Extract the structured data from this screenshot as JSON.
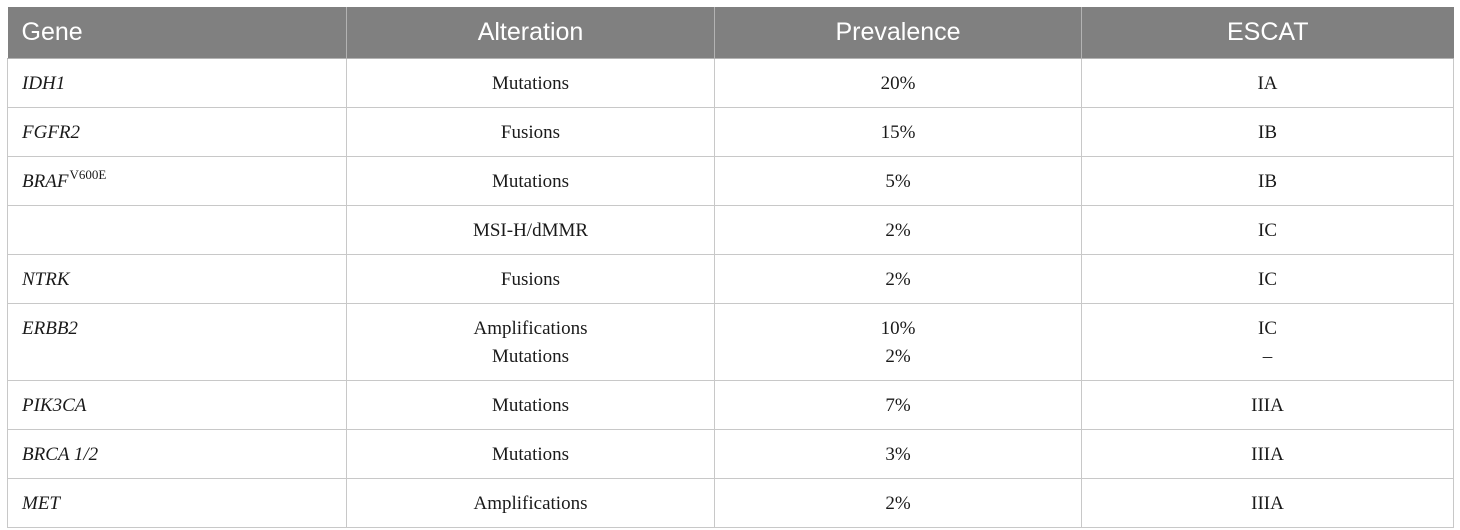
{
  "table": {
    "headers": [
      "Gene",
      "Alteration",
      "Prevalence",
      "ESCAT"
    ],
    "rows": [
      {
        "gene": "IDH1",
        "gene_sup": "",
        "alteration": [
          "Mutations"
        ],
        "prevalence": [
          "20%"
        ],
        "escat": [
          "IA"
        ]
      },
      {
        "gene": "FGFR2",
        "gene_sup": "",
        "alteration": [
          "Fusions"
        ],
        "prevalence": [
          "15%"
        ],
        "escat": [
          "IB"
        ]
      },
      {
        "gene": "BRAF",
        "gene_sup": "V600E",
        "alteration": [
          "Mutations"
        ],
        "prevalence": [
          "5%"
        ],
        "escat": [
          "IB"
        ]
      },
      {
        "gene": "",
        "gene_sup": "",
        "alteration": [
          "MSI-H/dMMR"
        ],
        "prevalence": [
          "2%"
        ],
        "escat": [
          "IC"
        ]
      },
      {
        "gene": "NTRK",
        "gene_sup": "",
        "alteration": [
          "Fusions"
        ],
        "prevalence": [
          "2%"
        ],
        "escat": [
          "IC"
        ]
      },
      {
        "gene": "ERBB2",
        "gene_sup": "",
        "alteration": [
          "Amplifications",
          "Mutations"
        ],
        "prevalence": [
          "10%",
          "2%"
        ],
        "escat": [
          "IC",
          "–"
        ]
      },
      {
        "gene": "PIK3CA",
        "gene_sup": "",
        "alteration": [
          "Mutations"
        ],
        "prevalence": [
          "7%"
        ],
        "escat": [
          "IIIA"
        ]
      },
      {
        "gene": "BRCA 1/2",
        "gene_sup": "",
        "alteration": [
          "Mutations"
        ],
        "prevalence": [
          "3%"
        ],
        "escat": [
          "IIIA"
        ]
      },
      {
        "gene": "MET",
        "gene_sup": "",
        "alteration": [
          "Amplifications"
        ],
        "prevalence": [
          "2%"
        ],
        "escat": [
          "IIIA"
        ]
      }
    ]
  }
}
